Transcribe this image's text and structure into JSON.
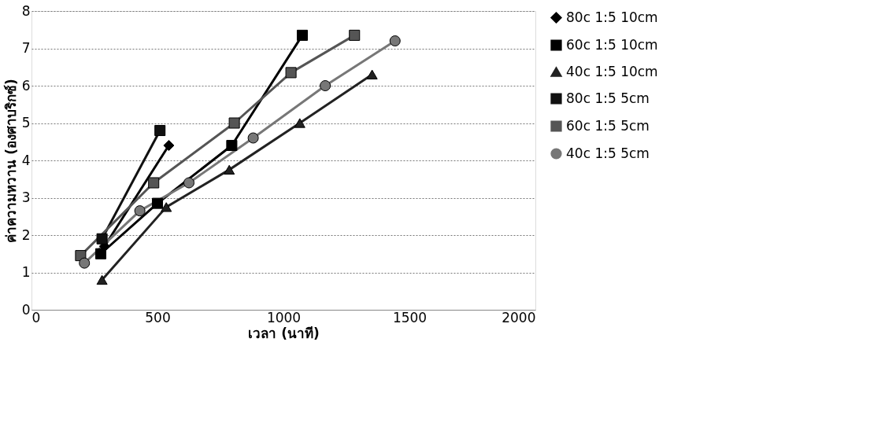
{
  "chart_data": {
    "type": "line",
    "xlabel": "เวลา (นาที)",
    "ylabel": "ค่าความหวาน (องศาบริกซ์)",
    "xlim": [
      0,
      2000
    ],
    "xticks": [
      0,
      500,
      1000,
      1500,
      2000
    ],
    "ylim": [
      0,
      8
    ],
    "yticks": [
      0,
      1,
      2,
      3,
      4,
      5,
      6,
      7,
      8
    ],
    "grid": "y",
    "legend": "right",
    "line_style": "solid",
    "series": [
      {
        "name": "80c 1:5 10cm",
        "color": "#000000",
        "marker": "diamond",
        "x": [
          290,
          545
        ],
        "values": [
          1.7,
          4.4
        ]
      },
      {
        "name": "60c 1:5 10cm",
        "color": "#000000",
        "marker": "square",
        "x": [
          275,
          500,
          795,
          1075
        ],
        "values": [
          1.5,
          2.85,
          4.4,
          7.35
        ]
      },
      {
        "name": "40c 1:5 10cm",
        "color": "#222222",
        "marker": "triangle",
        "x": [
          280,
          535,
          785,
          1065,
          1352
        ],
        "values": [
          0.8,
          2.75,
          3.75,
          5.0,
          6.3
        ]
      },
      {
        "name": "80c 1:5 5cm",
        "color": "#111111",
        "marker": "square",
        "x": [
          280,
          510
        ],
        "values": [
          1.9,
          4.8
        ]
      },
      {
        "name": "60c 1:5 5cm",
        "color": "#555555",
        "marker": "square",
        "x": [
          195,
          485,
          805,
          1030,
          1282
        ],
        "values": [
          1.45,
          3.4,
          5.0,
          6.35,
          7.35
        ]
      },
      {
        "name": "40c 1:5 5cm",
        "color": "#777777",
        "marker": "circle",
        "x": [
          210,
          430,
          625,
          880,
          1166,
          1443
        ],
        "values": [
          1.25,
          2.65,
          3.4,
          4.6,
          6.0,
          7.2
        ]
      }
    ]
  }
}
